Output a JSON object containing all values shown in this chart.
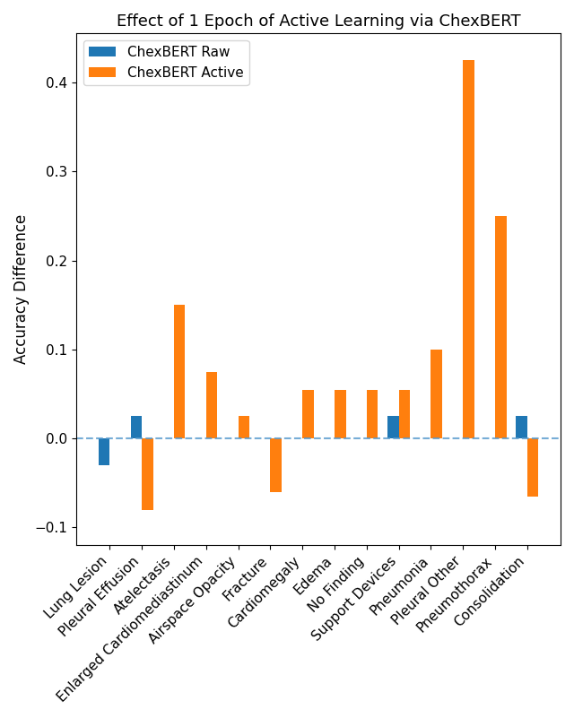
{
  "title": "Effect of 1 Epoch of Active Learning via ChexBERT",
  "ylabel": "Accuracy Difference",
  "categories": [
    "Lung Lesion",
    "Pleural Effusion",
    "Atelectasis",
    "Enlarged Cardiomediastinum",
    "Airspace Opacity",
    "Fracture",
    "Cardiomegaly",
    "Edema",
    "No Finding",
    "Support Devices",
    "Pneumonia",
    "Pleural Other",
    "Pneumothorax",
    "Consolidation"
  ],
  "raw_values": [
    -0.03,
    0.025,
    0.0,
    0.0,
    0.0,
    0.0,
    0.0,
    0.0,
    0.0,
    0.025,
    0.0,
    0.0,
    0.0,
    0.025
  ],
  "active_values": [
    0.0,
    -0.08,
    0.15,
    0.075,
    0.025,
    -0.06,
    0.055,
    0.055,
    0.055,
    0.055,
    0.1,
    0.425,
    0.25,
    -0.065
  ],
  "raw_color": "#1f77b4",
  "active_color": "#ff7f0e",
  "ylim_min": -0.12,
  "ylim_max": 0.455,
  "yticks": [
    -0.1,
    0.0,
    0.1,
    0.2,
    0.3,
    0.4
  ],
  "ytick_labels": [
    "−0.1",
    "0.0",
    "0.1",
    "0.2",
    "0.3",
    "0.4"
  ],
  "hline_y": 0.0,
  "hline_color": "#5599cc",
  "hline_style": "--",
  "hline_alpha": 0.8,
  "bar_width": 0.35,
  "legend_labels": [
    "ChexBERT Raw",
    "ChexBERT Active"
  ],
  "title_fontsize": 13,
  "axis_label_fontsize": 12,
  "tick_fontsize": 11,
  "legend_fontsize": 11,
  "figwidth": 6.4,
  "figheight": 8.01
}
